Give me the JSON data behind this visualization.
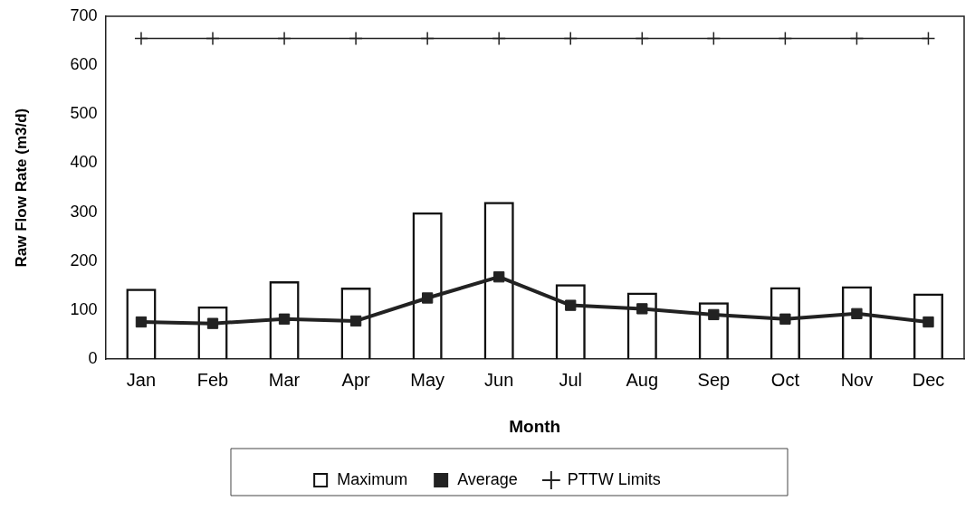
{
  "chart_data": {
    "type": "bar",
    "xlabel": "Month",
    "ylabel": "Raw Flow Rate (m3/d)",
    "categories": [
      "Jan",
      "Feb",
      "Mar",
      "Apr",
      "May",
      "Jun",
      "Jul",
      "Aug",
      "Sep",
      "Oct",
      "Nov",
      "Dec"
    ],
    "series": [
      {
        "name": "Maximum",
        "color": "#111111",
        "values": [
          144,
          108,
          159,
          146,
          300,
          321,
          153,
          136,
          116,
          147,
          149,
          134
        ]
      },
      {
        "name": "Average",
        "type": "line",
        "color": "#222222",
        "marker": "square",
        "values": [
          76,
          73,
          82,
          78,
          125,
          168,
          110,
          103,
          91,
          82,
          93,
          76
        ]
      },
      {
        "name": "PTTW Limits",
        "type": "line",
        "color": "#222222",
        "marker": "cross",
        "values": [
          655,
          655,
          655,
          655,
          655,
          655,
          655,
          655,
          655,
          655,
          655,
          655
        ]
      }
    ],
    "ylim": [
      0,
      700
    ],
    "yticks": [
      0,
      100,
      200,
      300,
      400,
      500,
      600,
      700
    ],
    "grid": false,
    "legend": "bottom"
  }
}
